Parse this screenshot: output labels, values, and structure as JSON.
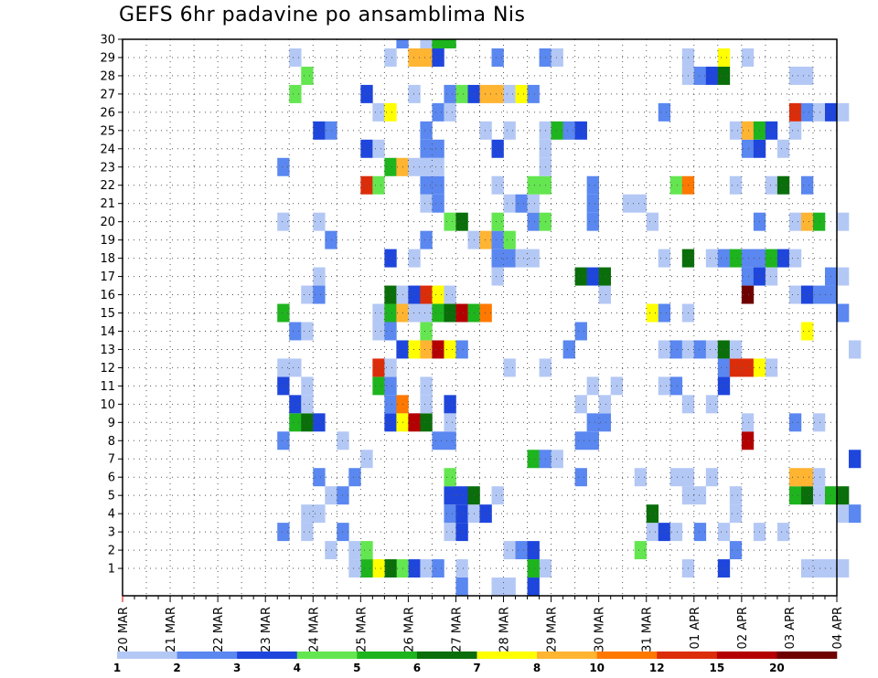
{
  "chart_data": {
    "type": "heatmap",
    "title": "GEFS 6hr padavine po ansamblima Nis",
    "xlabel": "",
    "ylabel": "",
    "x_tick_labels": [
      "20 MAR",
      "21 MAR",
      "22 MAR",
      "23 MAR",
      "24 MAR",
      "25 MAR",
      "26 MAR",
      "27 MAR",
      "28 MAR",
      "29 MAR",
      "30 MAR",
      "31 MAR",
      "01 APR",
      "02 APR",
      "03 APR",
      "04 APR"
    ],
    "y_tick_labels": [
      "1",
      "2",
      "3",
      "4",
      "5",
      "6",
      "7",
      "8",
      "9",
      "10",
      "11",
      "12",
      "13",
      "14",
      "15",
      "16",
      "17",
      "18",
      "19",
      "20",
      "21",
      "22",
      "23",
      "24",
      "25",
      "26",
      "27",
      "28",
      "29",
      "30"
    ],
    "time_steps_per_day": 4,
    "grid": true,
    "color_levels": [
      "1",
      "2",
      "3",
      "4",
      "5",
      "6",
      "7",
      "8",
      "10",
      "12",
      "15",
      "20"
    ],
    "color_bins": [
      "#b4c8f5",
      "#5a87f0",
      "#1e46dc",
      "#64e650",
      "#1eb41e",
      "#0a6e0a",
      "#ffff00",
      "#ffb432",
      "#ff7800",
      "#dc2d0a",
      "#b40000",
      "#6e0000"
    ],
    "cells": [
      [
        1,
        24,
        3
      ],
      [
        1,
        25,
        1
      ],
      [
        1,
        26,
        2
      ],
      [
        1,
        28,
        1
      ],
      [
        1,
        35,
        1
      ],
      [
        1,
        34,
        5
      ],
      [
        1,
        23,
        4
      ],
      [
        1,
        22,
        6
      ],
      [
        1,
        21,
        7
      ],
      [
        1,
        20,
        5
      ],
      [
        1,
        19,
        1
      ],
      [
        1,
        50,
        3
      ],
      [
        1,
        47,
        1
      ],
      [
        1,
        57,
        1
      ],
      [
        1,
        58,
        1
      ],
      [
        1,
        59,
        1
      ],
      [
        1,
        60,
        1
      ],
      [
        2,
        19,
        1
      ],
      [
        2,
        20,
        4
      ],
      [
        2,
        17,
        1
      ],
      [
        2,
        32,
        1
      ],
      [
        2,
        33,
        2
      ],
      [
        2,
        34,
        3
      ],
      [
        2,
        43,
        4
      ],
      [
        2,
        51,
        2
      ],
      [
        3,
        13,
        2
      ],
      [
        3,
        15,
        1
      ],
      [
        3,
        18,
        2
      ],
      [
        3,
        27,
        1
      ],
      [
        3,
        28,
        3
      ],
      [
        3,
        44,
        1
      ],
      [
        3,
        45,
        3
      ],
      [
        3,
        46,
        1
      ],
      [
        3,
        48,
        2
      ],
      [
        3,
        50,
        1
      ],
      [
        3,
        53,
        1
      ],
      [
        3,
        55,
        1
      ],
      [
        4,
        15,
        1
      ],
      [
        4,
        16,
        1
      ],
      [
        4,
        27,
        2
      ],
      [
        4,
        28,
        3
      ],
      [
        4,
        29,
        1
      ],
      [
        4,
        30,
        3
      ],
      [
        4,
        44,
        6
      ],
      [
        4,
        51,
        1
      ],
      [
        4,
        60,
        1
      ],
      [
        4,
        61,
        2
      ],
      [
        5,
        17,
        1
      ],
      [
        5,
        18,
        2
      ],
      [
        5,
        27,
        3
      ],
      [
        5,
        28,
        3
      ],
      [
        5,
        29,
        6
      ],
      [
        5,
        31,
        1
      ],
      [
        5,
        47,
        1
      ],
      [
        5,
        48,
        1
      ],
      [
        5,
        51,
        1
      ],
      [
        5,
        56,
        5
      ],
      [
        5,
        57,
        6
      ],
      [
        5,
        58,
        1
      ],
      [
        5,
        59,
        5
      ],
      [
        5,
        60,
        6
      ],
      [
        6,
        16,
        2
      ],
      [
        6,
        19,
        2
      ],
      [
        6,
        27,
        4
      ],
      [
        6,
        38,
        2
      ],
      [
        6,
        43,
        1
      ],
      [
        6,
        46,
        1
      ],
      [
        6,
        47,
        1
      ],
      [
        6,
        49,
        1
      ],
      [
        6,
        56,
        8
      ],
      [
        6,
        57,
        8
      ],
      [
        6,
        58,
        1
      ],
      [
        7,
        20,
        1
      ],
      [
        7,
        34,
        5
      ],
      [
        7,
        35,
        2
      ],
      [
        7,
        36,
        1
      ],
      [
        7,
        61,
        3
      ],
      [
        8,
        13,
        2
      ],
      [
        8,
        18,
        1
      ],
      [
        8,
        26,
        2
      ],
      [
        8,
        27,
        2
      ],
      [
        8,
        38,
        2
      ],
      [
        8,
        39,
        2
      ],
      [
        8,
        52,
        11
      ],
      [
        9,
        14,
        5
      ],
      [
        9,
        15,
        6
      ],
      [
        9,
        16,
        3
      ],
      [
        9,
        22,
        3
      ],
      [
        9,
        23,
        7
      ],
      [
        9,
        24,
        11
      ],
      [
        9,
        25,
        6
      ],
      [
        9,
        27,
        1
      ],
      [
        9,
        39,
        2
      ],
      [
        9,
        40,
        2
      ],
      [
        9,
        52,
        1
      ],
      [
        9,
        56,
        2
      ],
      [
        9,
        58,
        1
      ],
      [
        10,
        14,
        3
      ],
      [
        10,
        15,
        1
      ],
      [
        10,
        22,
        2
      ],
      [
        10,
        23,
        9
      ],
      [
        10,
        25,
        1
      ],
      [
        10,
        27,
        3
      ],
      [
        10,
        38,
        1
      ],
      [
        10,
        40,
        1
      ],
      [
        10,
        47,
        1
      ],
      [
        10,
        49,
        1
      ],
      [
        11,
        13,
        3
      ],
      [
        11,
        15,
        1
      ],
      [
        11,
        21,
        5
      ],
      [
        11,
        22,
        2
      ],
      [
        11,
        25,
        1
      ],
      [
        11,
        39,
        1
      ],
      [
        11,
        41,
        1
      ],
      [
        11,
        45,
        1
      ],
      [
        11,
        46,
        2
      ],
      [
        11,
        50,
        3
      ],
      [
        12,
        13,
        1
      ],
      [
        12,
        14,
        1
      ],
      [
        12,
        21,
        10
      ],
      [
        12,
        22,
        1
      ],
      [
        12,
        32,
        1
      ],
      [
        12,
        35,
        1
      ],
      [
        12,
        50,
        2
      ],
      [
        12,
        51,
        10
      ],
      [
        12,
        52,
        10
      ],
      [
        12,
        53,
        7
      ],
      [
        12,
        54,
        1
      ],
      [
        13,
        23,
        3
      ],
      [
        13,
        24,
        7
      ],
      [
        13,
        25,
        8
      ],
      [
        13,
        26,
        11
      ],
      [
        13,
        27,
        7
      ],
      [
        13,
        28,
        2
      ],
      [
        13,
        37,
        2
      ],
      [
        13,
        45,
        1
      ],
      [
        13,
        46,
        2
      ],
      [
        13,
        47,
        1
      ],
      [
        13,
        48,
        2
      ],
      [
        13,
        49,
        1
      ],
      [
        13,
        50,
        6
      ],
      [
        13,
        51,
        1
      ],
      [
        13,
        61,
        1
      ],
      [
        14,
        14,
        2
      ],
      [
        14,
        15,
        1
      ],
      [
        14,
        21,
        1
      ],
      [
        14,
        22,
        2
      ],
      [
        14,
        25,
        4
      ],
      [
        14,
        38,
        2
      ],
      [
        14,
        57,
        7
      ],
      [
        15,
        13,
        5
      ],
      [
        15,
        21,
        1
      ],
      [
        15,
        22,
        5
      ],
      [
        15,
        23,
        8
      ],
      [
        15,
        24,
        1
      ],
      [
        15,
        25,
        1
      ],
      [
        15,
        26,
        5
      ],
      [
        15,
        27,
        6
      ],
      [
        15,
        28,
        11
      ],
      [
        15,
        29,
        5
      ],
      [
        15,
        30,
        9
      ],
      [
        15,
        44,
        7
      ],
      [
        15,
        45,
        2
      ],
      [
        15,
        47,
        1
      ],
      [
        15,
        60,
        2
      ],
      [
        16,
        15,
        1
      ],
      [
        16,
        16,
        2
      ],
      [
        16,
        22,
        6
      ],
      [
        16,
        23,
        1
      ],
      [
        16,
        24,
        3
      ],
      [
        16,
        25,
        10
      ],
      [
        16,
        26,
        7
      ],
      [
        16,
        27,
        1
      ],
      [
        16,
        40,
        1
      ],
      [
        16,
        52,
        12
      ],
      [
        16,
        56,
        1
      ],
      [
        16,
        57,
        3
      ],
      [
        16,
        58,
        2
      ],
      [
        16,
        59,
        2
      ],
      [
        17,
        16,
        1
      ],
      [
        17,
        31,
        1
      ],
      [
        17,
        38,
        6
      ],
      [
        17,
        39,
        3
      ],
      [
        17,
        40,
        6
      ],
      [
        17,
        52,
        2
      ],
      [
        17,
        53,
        3
      ],
      [
        17,
        54,
        1
      ],
      [
        17,
        59,
        2
      ],
      [
        17,
        60,
        1
      ],
      [
        18,
        22,
        3
      ],
      [
        18,
        24,
        1
      ],
      [
        18,
        31,
        2
      ],
      [
        18,
        32,
        2
      ],
      [
        18,
        33,
        1
      ],
      [
        18,
        34,
        1
      ],
      [
        18,
        45,
        1
      ],
      [
        18,
        47,
        6
      ],
      [
        18,
        49,
        1
      ],
      [
        18,
        50,
        2
      ],
      [
        18,
        51,
        5
      ],
      [
        18,
        52,
        2
      ],
      [
        18,
        53,
        2
      ],
      [
        18,
        54,
        5
      ],
      [
        18,
        55,
        3
      ],
      [
        18,
        56,
        1
      ],
      [
        19,
        17,
        2
      ],
      [
        19,
        25,
        2
      ],
      [
        19,
        29,
        1
      ],
      [
        19,
        30,
        8
      ],
      [
        19,
        31,
        2
      ],
      [
        19,
        32,
        4
      ],
      [
        20,
        13,
        1
      ],
      [
        20,
        16,
        1
      ],
      [
        20,
        27,
        4
      ],
      [
        20,
        28,
        6
      ],
      [
        20,
        31,
        4
      ],
      [
        20,
        34,
        2
      ],
      [
        20,
        35,
        4
      ],
      [
        20,
        39,
        2
      ],
      [
        20,
        44,
        1
      ],
      [
        20,
        53,
        2
      ],
      [
        20,
        56,
        1
      ],
      [
        20,
        57,
        8
      ],
      [
        20,
        58,
        5
      ],
      [
        20,
        60,
        1
      ],
      [
        21,
        25,
        1
      ],
      [
        21,
        26,
        2
      ],
      [
        21,
        32,
        1
      ],
      [
        21,
        33,
        2
      ],
      [
        21,
        34,
        1
      ],
      [
        21,
        39,
        2
      ],
      [
        21,
        42,
        1
      ],
      [
        21,
        43,
        1
      ],
      [
        22,
        20,
        10
      ],
      [
        22,
        21,
        4
      ],
      [
        22,
        25,
        2
      ],
      [
        22,
        26,
        2
      ],
      [
        22,
        31,
        1
      ],
      [
        22,
        34,
        4
      ],
      [
        22,
        35,
        4
      ],
      [
        22,
        39,
        2
      ],
      [
        22,
        46,
        4
      ],
      [
        22,
        47,
        9
      ],
      [
        22,
        51,
        1
      ],
      [
        22,
        54,
        1
      ],
      [
        22,
        55,
        6
      ],
      [
        22,
        57,
        2
      ],
      [
        23,
        13,
        2
      ],
      [
        23,
        22,
        5
      ],
      [
        23,
        23,
        8
      ],
      [
        23,
        24,
        1
      ],
      [
        23,
        25,
        1
      ],
      [
        23,
        26,
        1
      ],
      [
        23,
        35,
        1
      ],
      [
        24,
        20,
        3
      ],
      [
        24,
        21,
        1
      ],
      [
        24,
        25,
        2
      ],
      [
        24,
        26,
        2
      ],
      [
        24,
        31,
        3
      ],
      [
        24,
        35,
        1
      ],
      [
        24,
        52,
        2
      ],
      [
        24,
        53,
        3
      ],
      [
        24,
        55,
        1
      ],
      [
        25,
        16,
        3
      ],
      [
        25,
        17,
        2
      ],
      [
        25,
        25,
        2
      ],
      [
        25,
        30,
        1
      ],
      [
        25,
        32,
        1
      ],
      [
        25,
        35,
        1
      ],
      [
        25,
        36,
        5
      ],
      [
        25,
        37,
        2
      ],
      [
        25,
        38,
        3
      ],
      [
        25,
        51,
        1
      ],
      [
        25,
        52,
        8
      ],
      [
        25,
        53,
        5
      ],
      [
        25,
        54,
        3
      ],
      [
        25,
        56,
        1
      ],
      [
        26,
        21,
        1
      ],
      [
        26,
        22,
        7
      ],
      [
        26,
        26,
        2
      ],
      [
        26,
        27,
        1
      ],
      [
        26,
        45,
        2
      ],
      [
        26,
        56,
        10
      ],
      [
        26,
        57,
        2
      ],
      [
        26,
        58,
        1
      ],
      [
        26,
        59,
        3
      ],
      [
        26,
        60,
        1
      ],
      [
        27,
        14,
        4
      ],
      [
        27,
        20,
        3
      ],
      [
        27,
        24,
        1
      ],
      [
        27,
        27,
        2
      ],
      [
        27,
        28,
        4
      ],
      [
        27,
        29,
        3
      ],
      [
        27,
        30,
        8
      ],
      [
        27,
        31,
        8
      ],
      [
        27,
        32,
        1
      ],
      [
        27,
        33,
        7
      ],
      [
        27,
        34,
        2
      ],
      [
        28,
        15,
        4
      ],
      [
        28,
        47,
        1
      ],
      [
        28,
        48,
        2
      ],
      [
        28,
        49,
        3
      ],
      [
        28,
        50,
        6
      ],
      [
        28,
        56,
        1
      ],
      [
        28,
        57,
        1
      ],
      [
        29,
        14,
        1
      ],
      [
        29,
        22,
        1
      ],
      [
        29,
        24,
        8
      ],
      [
        29,
        25,
        8
      ],
      [
        29,
        26,
        3
      ],
      [
        29,
        31,
        2
      ],
      [
        29,
        35,
        2
      ],
      [
        29,
        36,
        1
      ],
      [
        29,
        47,
        1
      ],
      [
        29,
        50,
        7
      ],
      [
        29,
        52,
        1
      ],
      [
        30,
        23,
        2
      ],
      [
        30,
        25,
        1
      ],
      [
        30,
        26,
        5
      ],
      [
        30,
        27,
        5
      ],
      [
        0,
        28,
        2
      ],
      [
        0,
        31,
        1
      ],
      [
        0,
        32,
        1
      ],
      [
        0,
        34,
        3
      ]
    ]
  }
}
